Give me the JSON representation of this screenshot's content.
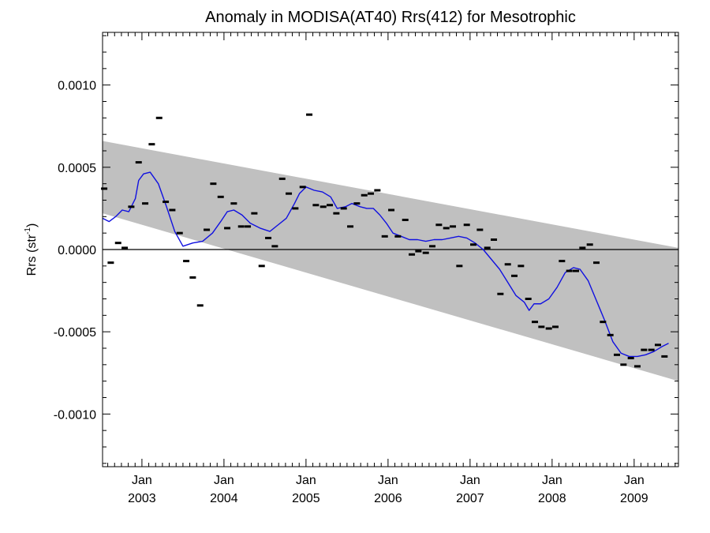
{
  "chart_data": {
    "type": "scatter",
    "title": "Anomaly in MODISA(AT40) Rrs(412) for Mesotrophic",
    "ylabel_main": "Rrs (str",
    "ylabel_sup": "-1",
    "ylabel_close": ")",
    "xlabel": "",
    "xlim": [
      2002.52,
      2009.54
    ],
    "ylim": [
      -0.00132,
      0.00132
    ],
    "yticks": [
      {
        "value": 0.001,
        "label": "0.0010"
      },
      {
        "value": 0.0005,
        "label": "0.0005"
      },
      {
        "value": 0.0,
        "label": "0.0000"
      },
      {
        "value": -0.0005,
        "label": "-0.0005"
      },
      {
        "value": -0.001,
        "label": "-0.0010"
      }
    ],
    "xticks": [
      {
        "value": 2003.0,
        "month": "Jan",
        "year": "2003"
      },
      {
        "value": 2004.0,
        "month": "Jan",
        "year": "2004"
      },
      {
        "value": 2005.0,
        "month": "Jan",
        "year": "2005"
      },
      {
        "value": 2006.0,
        "month": "Jan",
        "year": "2006"
      },
      {
        "value": 2007.0,
        "month": "Jan",
        "year": "2007"
      },
      {
        "value": 2008.0,
        "month": "Jan",
        "year": "2008"
      },
      {
        "value": 2009.0,
        "month": "Jan",
        "year": "2009"
      }
    ],
    "zero_line": 0.0,
    "band": {
      "upper": [
        [
          2002.52,
          0.00066
        ],
        [
          2009.54,
          1e-05
        ]
      ],
      "lower": [
        [
          2002.52,
          0.00022
        ],
        [
          2009.54,
          -0.0008
        ]
      ],
      "color": "#c0c0c0"
    },
    "series": [
      {
        "type": "scatter",
        "marker": "dash",
        "color": "#000000",
        "points": [
          [
            2002.54,
            0.00037
          ],
          [
            2002.62,
            -8e-05
          ],
          [
            2002.71,
            4e-05
          ],
          [
            2002.79,
            1e-05
          ],
          [
            2002.87,
            0.00026
          ],
          [
            2002.96,
            0.00053
          ],
          [
            2003.04,
            0.00028
          ],
          [
            2003.12,
            0.00064
          ],
          [
            2003.21,
            0.0008
          ],
          [
            2003.29,
            0.00029
          ],
          [
            2003.37,
            0.00024
          ],
          [
            2003.46,
            0.0001
          ],
          [
            2003.54,
            -7e-05
          ],
          [
            2003.62,
            -0.00017
          ],
          [
            2003.71,
            -0.00034
          ],
          [
            2003.79,
            0.00012
          ],
          [
            2003.87,
            0.0004
          ],
          [
            2003.96,
            0.00032
          ],
          [
            2004.04,
            0.00013
          ],
          [
            2004.12,
            0.00028
          ],
          [
            2004.21,
            0.00014
          ],
          [
            2004.29,
            0.00014
          ],
          [
            2004.37,
            0.00022
          ],
          [
            2004.46,
            -0.0001
          ],
          [
            2004.54,
            7e-05
          ],
          [
            2004.62,
            2e-05
          ],
          [
            2004.71,
            0.00043
          ],
          [
            2004.79,
            0.00034
          ],
          [
            2004.87,
            0.00025
          ],
          [
            2004.96,
            0.00038
          ],
          [
            2005.04,
            0.00082
          ],
          [
            2005.12,
            0.00027
          ],
          [
            2005.21,
            0.00026
          ],
          [
            2005.29,
            0.00027
          ],
          [
            2005.37,
            0.00022
          ],
          [
            2005.46,
            0.00025
          ],
          [
            2005.54,
            0.00014
          ],
          [
            2005.62,
            0.00028
          ],
          [
            2005.71,
            0.00033
          ],
          [
            2005.79,
            0.00034
          ],
          [
            2005.87,
            0.00036
          ],
          [
            2005.96,
            8e-05
          ],
          [
            2006.04,
            0.00024
          ],
          [
            2006.12,
            8e-05
          ],
          [
            2006.21,
            0.00018
          ],
          [
            2006.29,
            -3e-05
          ],
          [
            2006.37,
            -1e-05
          ],
          [
            2006.46,
            -2e-05
          ],
          [
            2006.54,
            2e-05
          ],
          [
            2006.62,
            0.00015
          ],
          [
            2006.71,
            0.00013
          ],
          [
            2006.79,
            0.00014
          ],
          [
            2006.87,
            -0.0001
          ],
          [
            2006.96,
            0.00015
          ],
          [
            2007.04,
            3e-05
          ],
          [
            2007.12,
            0.00012
          ],
          [
            2007.21,
            1e-05
          ],
          [
            2007.29,
            6e-05
          ],
          [
            2007.37,
            -0.00027
          ],
          [
            2007.46,
            -9e-05
          ],
          [
            2007.54,
            -0.00016
          ],
          [
            2007.62,
            -0.0001
          ],
          [
            2007.71,
            -0.0003
          ],
          [
            2007.79,
            -0.00044
          ],
          [
            2007.87,
            -0.00047
          ],
          [
            2007.96,
            -0.00048
          ],
          [
            2008.04,
            -0.00047
          ],
          [
            2008.12,
            -7e-05
          ],
          [
            2008.21,
            -0.00013
          ],
          [
            2008.29,
            -0.00013
          ],
          [
            2008.37,
            1e-05
          ],
          [
            2008.46,
            3e-05
          ],
          [
            2008.54,
            -8e-05
          ],
          [
            2008.62,
            -0.00044
          ],
          [
            2008.71,
            -0.00052
          ],
          [
            2008.79,
            -0.00064
          ],
          [
            2008.87,
            -0.0007
          ],
          [
            2008.96,
            -0.00066
          ],
          [
            2009.04,
            -0.00071
          ],
          [
            2009.12,
            -0.00061
          ],
          [
            2009.21,
            -0.00061
          ],
          [
            2009.29,
            -0.00058
          ],
          [
            2009.37,
            -0.00065
          ]
        ]
      },
      {
        "type": "line",
        "color": "#1010e0",
        "points": [
          [
            2002.52,
            0.00019
          ],
          [
            2002.6,
            0.00017
          ],
          [
            2002.68,
            0.0002
          ],
          [
            2002.76,
            0.00024
          ],
          [
            2002.84,
            0.00023
          ],
          [
            2002.92,
            0.00031
          ],
          [
            2002.96,
            0.00042
          ],
          [
            2003.02,
            0.00046
          ],
          [
            2003.1,
            0.00047
          ],
          [
            2003.2,
            0.0004
          ],
          [
            2003.3,
            0.00026
          ],
          [
            2003.4,
            0.00011
          ],
          [
            2003.5,
            2e-05
          ],
          [
            2003.62,
            4e-05
          ],
          [
            2003.74,
            5e-05
          ],
          [
            2003.86,
            0.0001
          ],
          [
            2003.96,
            0.00017
          ],
          [
            2004.04,
            0.00023
          ],
          [
            2004.12,
            0.00024
          ],
          [
            2004.22,
            0.00021
          ],
          [
            2004.32,
            0.00016
          ],
          [
            2004.44,
            0.00013
          ],
          [
            2004.56,
            0.00011
          ],
          [
            2004.66,
            0.00015
          ],
          [
            2004.76,
            0.00019
          ],
          [
            2004.86,
            0.00028
          ],
          [
            2004.92,
            0.00034
          ],
          [
            2005.0,
            0.00038
          ],
          [
            2005.1,
            0.00036
          ],
          [
            2005.2,
            0.00035
          ],
          [
            2005.3,
            0.00032
          ],
          [
            2005.38,
            0.00025
          ],
          [
            2005.48,
            0.00026
          ],
          [
            2005.56,
            0.00028
          ],
          [
            2005.66,
            0.00026
          ],
          [
            2005.74,
            0.00025
          ],
          [
            2005.82,
            0.00025
          ],
          [
            2005.9,
            0.00021
          ],
          [
            2005.98,
            0.00016
          ],
          [
            2006.06,
            0.0001
          ],
          [
            2006.16,
            8e-05
          ],
          [
            2006.26,
            6e-05
          ],
          [
            2006.36,
            6e-05
          ],
          [
            2006.46,
            5e-05
          ],
          [
            2006.56,
            6e-05
          ],
          [
            2006.66,
            6e-05
          ],
          [
            2006.76,
            7e-05
          ],
          [
            2006.86,
            8e-05
          ],
          [
            2006.96,
            7e-05
          ],
          [
            2007.06,
            4e-05
          ],
          [
            2007.16,
            0.0
          ],
          [
            2007.26,
            -6e-05
          ],
          [
            2007.36,
            -0.00012
          ],
          [
            2007.46,
            -0.0002
          ],
          [
            2007.56,
            -0.00028
          ],
          [
            2007.66,
            -0.00032
          ],
          [
            2007.72,
            -0.00037
          ],
          [
            2007.78,
            -0.00033
          ],
          [
            2007.86,
            -0.00033
          ],
          [
            2007.96,
            -0.0003
          ],
          [
            2008.06,
            -0.00023
          ],
          [
            2008.16,
            -0.00014
          ],
          [
            2008.26,
            -0.00011
          ],
          [
            2008.34,
            -0.00012
          ],
          [
            2008.44,
            -0.00019
          ],
          [
            2008.54,
            -0.00031
          ],
          [
            2008.64,
            -0.00043
          ],
          [
            2008.74,
            -0.00056
          ],
          [
            2008.84,
            -0.00063
          ],
          [
            2008.94,
            -0.00065
          ],
          [
            2009.04,
            -0.00065
          ],
          [
            2009.14,
            -0.00064
          ],
          [
            2009.24,
            -0.00062
          ],
          [
            2009.34,
            -0.00059
          ],
          [
            2009.42,
            -0.00057
          ]
        ]
      }
    ]
  }
}
